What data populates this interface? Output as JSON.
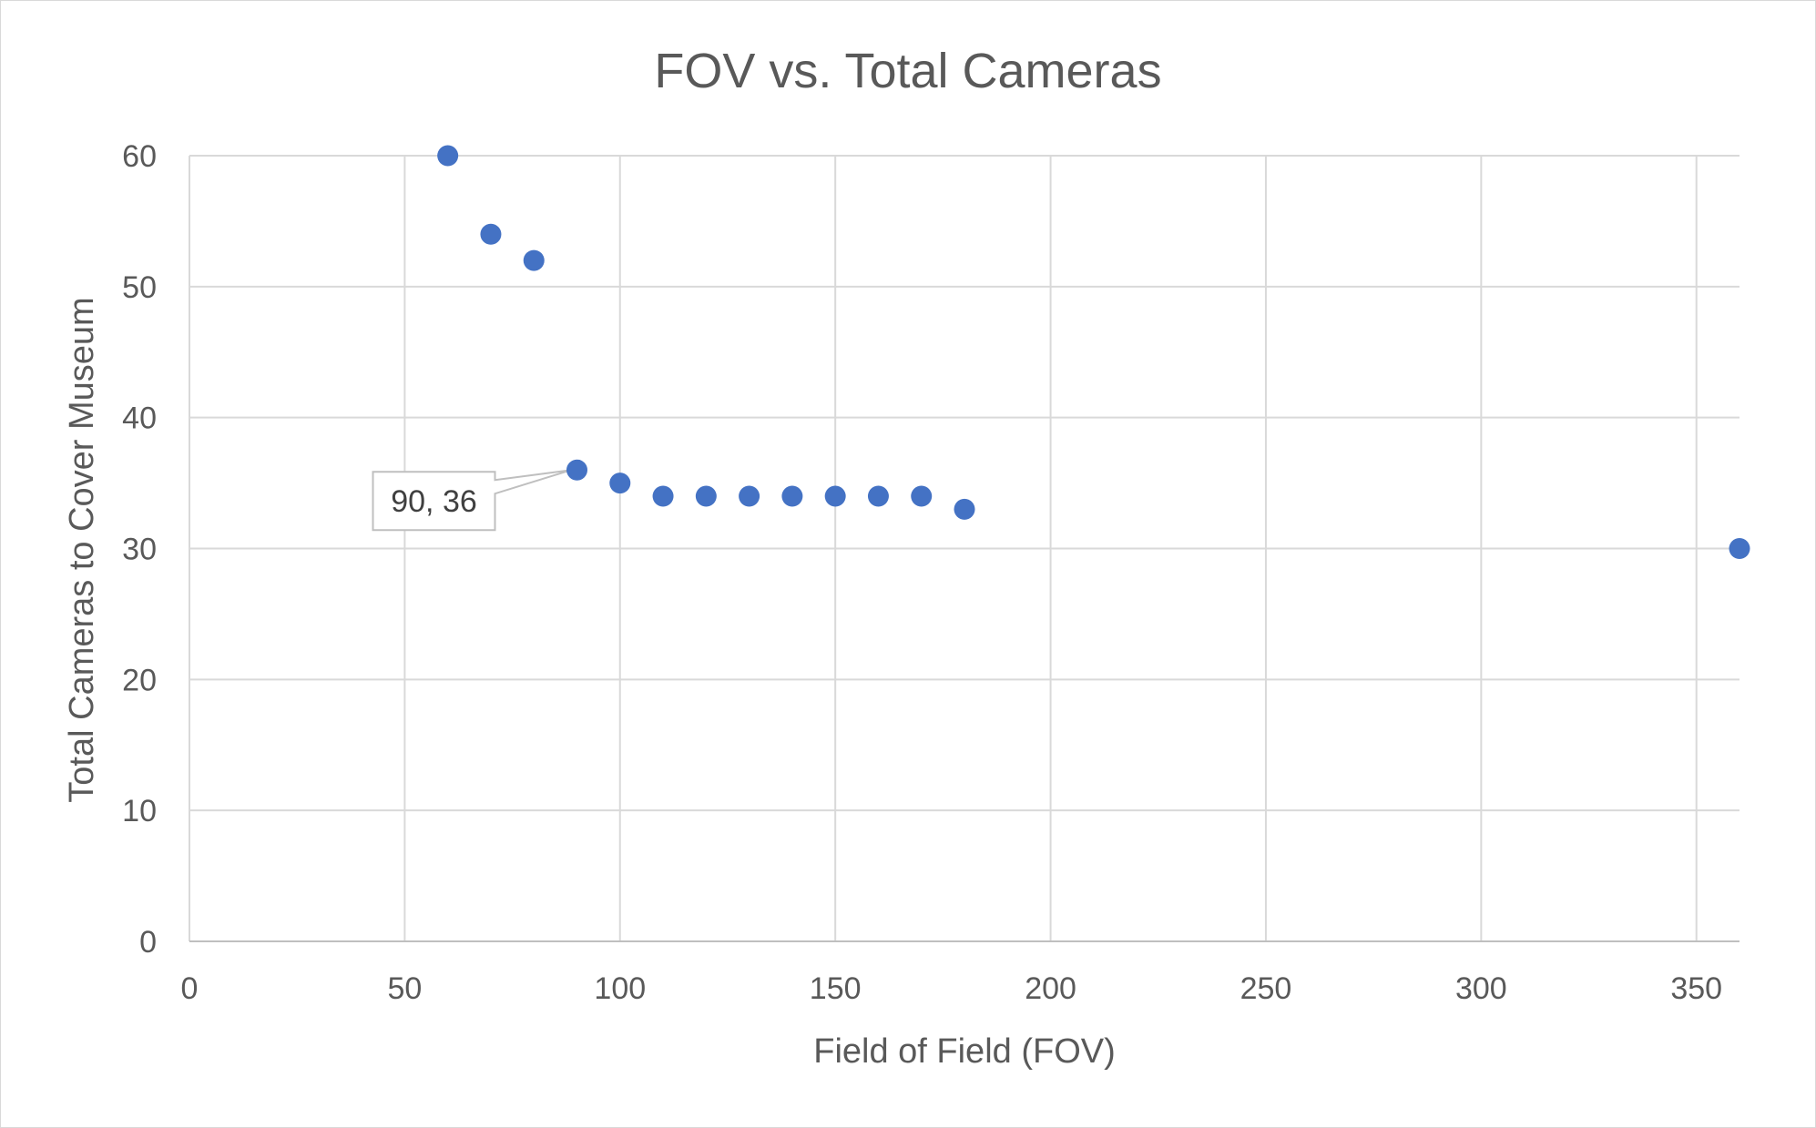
{
  "chart_data": {
    "type": "scatter",
    "title": "FOV vs. Total Cameras",
    "xlabel": "Field of Field (FOV)",
    "ylabel": "Total Cameras to Cover Museum",
    "xlim": [
      0,
      360
    ],
    "ylim": [
      0,
      60
    ],
    "x_ticks": [
      "0",
      "50",
      "100",
      "150",
      "200",
      "250",
      "300",
      "350"
    ],
    "y_ticks": [
      "0",
      "10",
      "20",
      "30",
      "40",
      "50",
      "60"
    ],
    "grid": true,
    "legend": "none",
    "marker_color": "#4472c4",
    "series": [
      {
        "points": [
          {
            "x": 60,
            "y": 60
          },
          {
            "x": 70,
            "y": 54
          },
          {
            "x": 80,
            "y": 52
          },
          {
            "x": 90,
            "y": 36
          },
          {
            "x": 100,
            "y": 35
          },
          {
            "x": 110,
            "y": 34
          },
          {
            "x": 120,
            "y": 34
          },
          {
            "x": 130,
            "y": 34
          },
          {
            "x": 140,
            "y": 34
          },
          {
            "x": 150,
            "y": 34
          },
          {
            "x": 160,
            "y": 34
          },
          {
            "x": 170,
            "y": 34
          },
          {
            "x": 180,
            "y": 33
          },
          {
            "x": 360,
            "y": 30
          }
        ]
      }
    ],
    "annotations": [
      {
        "text": "90, 36",
        "x": 90,
        "y": 36
      }
    ]
  }
}
